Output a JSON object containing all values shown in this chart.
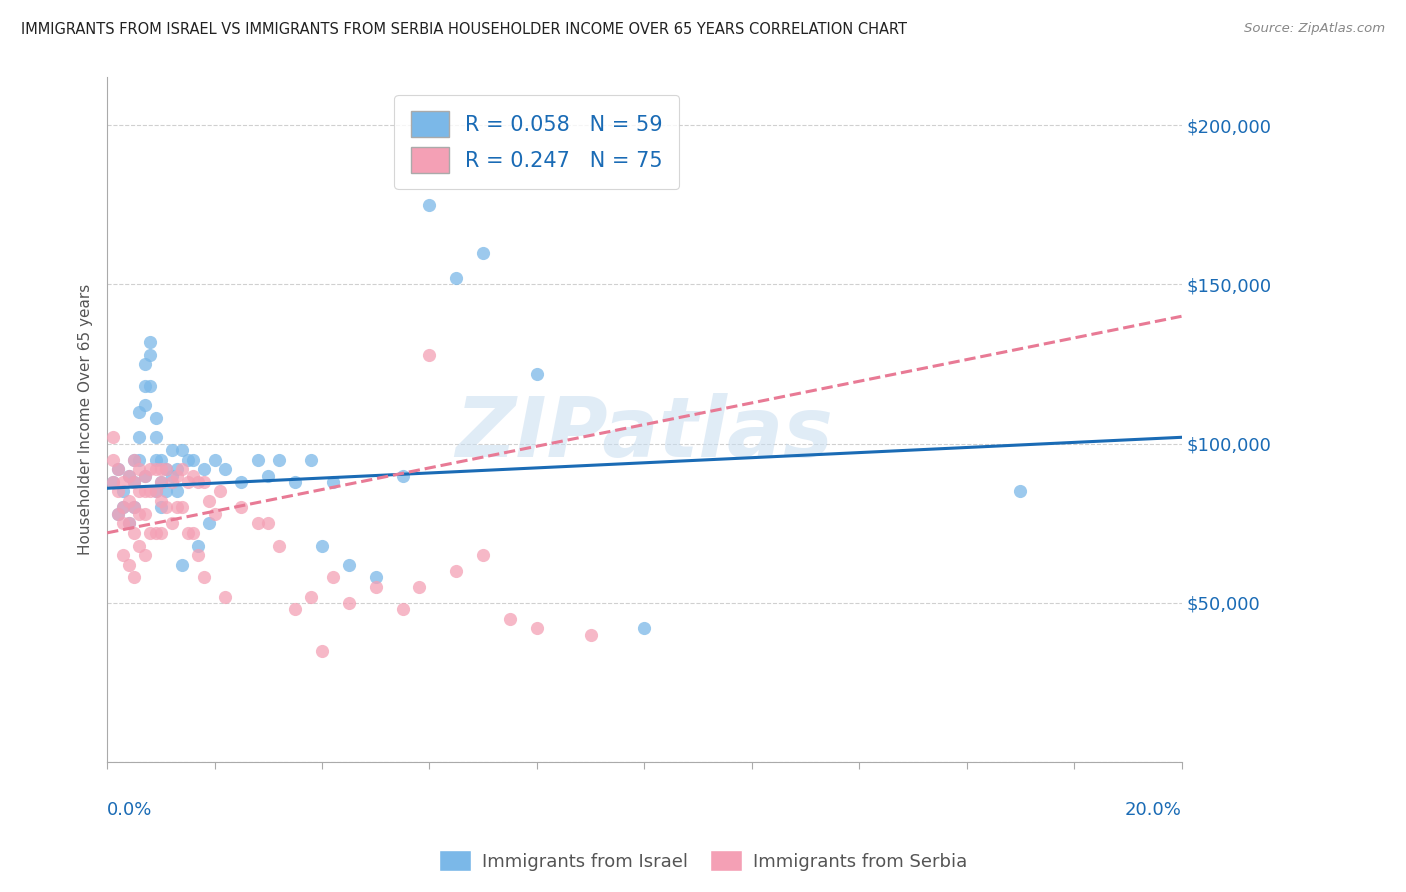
{
  "title": "IMMIGRANTS FROM ISRAEL VS IMMIGRANTS FROM SERBIA HOUSEHOLDER INCOME OVER 65 YEARS CORRELATION CHART",
  "source": "Source: ZipAtlas.com",
  "ylabel": "Householder Income Over 65 years",
  "xlim": [
    0.0,
    0.2
  ],
  "ylim": [
    0,
    215000
  ],
  "yticks": [
    0,
    50000,
    100000,
    150000,
    200000
  ],
  "ytick_labels": [
    "",
    "$50,000",
    "$100,000",
    "$150,000",
    "$200,000"
  ],
  "israel_color": "#7bb8e8",
  "serbia_color": "#f4a0b5",
  "israel_line_color": "#1a6bb5",
  "serbia_line_color": "#e87a95",
  "israel_R": 0.058,
  "israel_N": 59,
  "serbia_R": 0.247,
  "serbia_N": 75,
  "watermark": "ZIPatlas",
  "israel_scatter_x": [
    0.001,
    0.002,
    0.002,
    0.003,
    0.003,
    0.004,
    0.004,
    0.005,
    0.005,
    0.005,
    0.006,
    0.006,
    0.006,
    0.007,
    0.007,
    0.007,
    0.007,
    0.008,
    0.008,
    0.008,
    0.009,
    0.009,
    0.009,
    0.009,
    0.01,
    0.01,
    0.01,
    0.011,
    0.011,
    0.012,
    0.012,
    0.013,
    0.013,
    0.014,
    0.014,
    0.015,
    0.016,
    0.017,
    0.018,
    0.019,
    0.02,
    0.022,
    0.025,
    0.028,
    0.03,
    0.032,
    0.035,
    0.038,
    0.04,
    0.042,
    0.045,
    0.05,
    0.055,
    0.06,
    0.065,
    0.07,
    0.08,
    0.1,
    0.17
  ],
  "israel_scatter_y": [
    88000,
    92000,
    78000,
    85000,
    80000,
    90000,
    75000,
    95000,
    88000,
    80000,
    110000,
    102000,
    95000,
    125000,
    118000,
    112000,
    90000,
    132000,
    128000,
    118000,
    108000,
    102000,
    95000,
    85000,
    95000,
    88000,
    80000,
    92000,
    85000,
    98000,
    90000,
    92000,
    85000,
    98000,
    62000,
    95000,
    95000,
    68000,
    92000,
    75000,
    95000,
    92000,
    88000,
    95000,
    90000,
    95000,
    88000,
    95000,
    68000,
    88000,
    62000,
    58000,
    90000,
    175000,
    152000,
    160000,
    122000,
    42000,
    85000
  ],
  "serbia_scatter_x": [
    0.001,
    0.001,
    0.001,
    0.002,
    0.002,
    0.002,
    0.003,
    0.003,
    0.003,
    0.003,
    0.004,
    0.004,
    0.004,
    0.004,
    0.005,
    0.005,
    0.005,
    0.005,
    0.005,
    0.006,
    0.006,
    0.006,
    0.006,
    0.007,
    0.007,
    0.007,
    0.007,
    0.008,
    0.008,
    0.008,
    0.009,
    0.009,
    0.009,
    0.01,
    0.01,
    0.01,
    0.01,
    0.011,
    0.011,
    0.012,
    0.012,
    0.013,
    0.013,
    0.014,
    0.014,
    0.015,
    0.015,
    0.016,
    0.016,
    0.017,
    0.017,
    0.018,
    0.018,
    0.019,
    0.02,
    0.021,
    0.022,
    0.025,
    0.028,
    0.03,
    0.032,
    0.035,
    0.038,
    0.04,
    0.042,
    0.045,
    0.05,
    0.055,
    0.058,
    0.06,
    0.065,
    0.07,
    0.075,
    0.08,
    0.09
  ],
  "serbia_scatter_y": [
    102000,
    95000,
    88000,
    92000,
    85000,
    78000,
    88000,
    80000,
    75000,
    65000,
    90000,
    82000,
    75000,
    62000,
    95000,
    88000,
    80000,
    72000,
    58000,
    92000,
    85000,
    78000,
    68000,
    90000,
    85000,
    78000,
    65000,
    92000,
    85000,
    72000,
    92000,
    85000,
    72000,
    92000,
    88000,
    82000,
    72000,
    92000,
    80000,
    88000,
    75000,
    90000,
    80000,
    92000,
    80000,
    88000,
    72000,
    90000,
    72000,
    88000,
    65000,
    88000,
    58000,
    82000,
    78000,
    85000,
    52000,
    80000,
    75000,
    75000,
    68000,
    48000,
    52000,
    35000,
    58000,
    50000,
    55000,
    48000,
    55000,
    128000,
    60000,
    65000,
    45000,
    42000,
    40000
  ],
  "israel_trend_x": [
    0.0,
    0.2
  ],
  "israel_trend_y": [
    86000,
    102000
  ],
  "serbia_trend_x": [
    0.0,
    0.2
  ],
  "serbia_trend_y": [
    72000,
    140000
  ]
}
